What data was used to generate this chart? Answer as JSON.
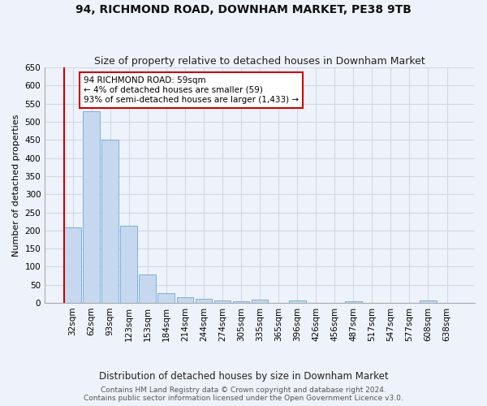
{
  "title": "94, RICHMOND ROAD, DOWNHAM MARKET, PE38 9TB",
  "subtitle": "Size of property relative to detached houses in Downham Market",
  "xlabel": "Distribution of detached houses by size in Downham Market",
  "ylabel": "Number of detached properties",
  "categories": [
    "32sqm",
    "62sqm",
    "93sqm",
    "123sqm",
    "153sqm",
    "184sqm",
    "214sqm",
    "244sqm",
    "274sqm",
    "305sqm",
    "335sqm",
    "365sqm",
    "396sqm",
    "426sqm",
    "456sqm",
    "487sqm",
    "517sqm",
    "547sqm",
    "577sqm",
    "608sqm",
    "638sqm"
  ],
  "values": [
    208,
    530,
    450,
    212,
    78,
    27,
    15,
    12,
    7,
    5,
    9,
    0,
    6,
    0,
    0,
    5,
    0,
    0,
    0,
    6,
    0
  ],
  "bar_color": "#c5d8ef",
  "bar_edge_color": "#6aaad4",
  "annotation_text": "94 RICHMOND ROAD: 59sqm\n← 4% of detached houses are smaller (59)\n93% of semi-detached houses are larger (1,433) →",
  "annotation_box_color": "#ffffff",
  "annotation_box_edge_color": "#cc0000",
  "ylim": [
    0,
    650
  ],
  "yticks": [
    0,
    50,
    100,
    150,
    200,
    250,
    300,
    350,
    400,
    450,
    500,
    550,
    600,
    650
  ],
  "bg_color": "#eef2fa",
  "grid_color": "#d0d8e8",
  "footer": "Contains HM Land Registry data © Crown copyright and database right 2024.\nContains public sector information licensed under the Open Government Licence v3.0.",
  "title_fontsize": 10,
  "subtitle_fontsize": 9,
  "xlabel_fontsize": 8.5,
  "ylabel_fontsize": 8,
  "tick_fontsize": 7.5,
  "footer_fontsize": 6.5,
  "red_line_color": "#cc0000",
  "red_line_x": -0.45
}
